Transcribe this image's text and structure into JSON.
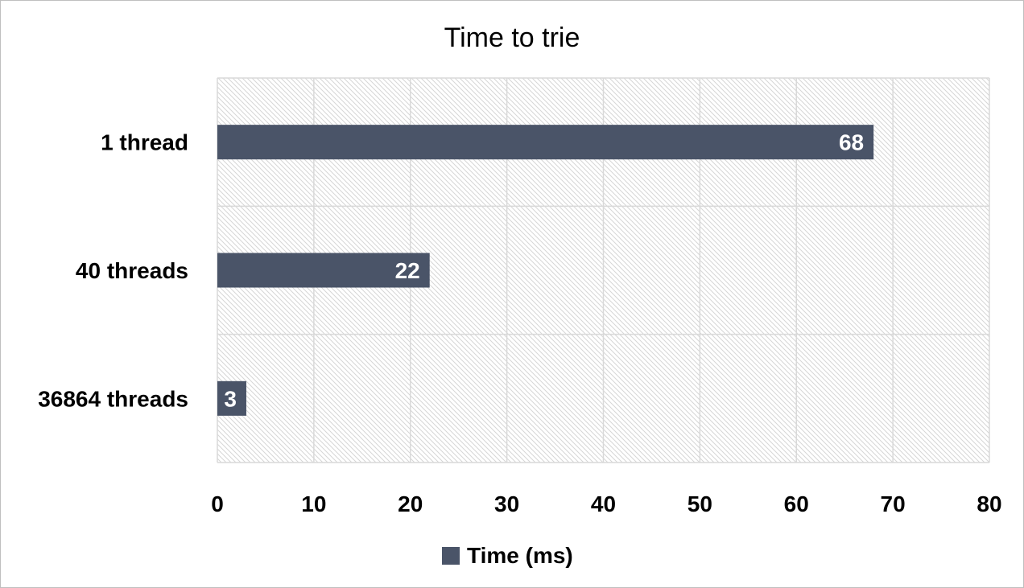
{
  "chart_data": {
    "type": "bar",
    "orientation": "horizontal",
    "title": "Time to trie",
    "categories": [
      "1 thread",
      "40 threads",
      "36864 threads"
    ],
    "series": [
      {
        "name": "Time (ms)",
        "values": [
          68,
          22,
          3
        ],
        "color": "#4a5468"
      }
    ],
    "data_labels": [
      "68",
      "22",
      "3"
    ],
    "xlim": [
      0,
      80
    ],
    "xticks": [
      0,
      10,
      20,
      30,
      40,
      50,
      60,
      70,
      80
    ],
    "xtick_labels": [
      "0",
      "10",
      "20",
      "30",
      "40",
      "50",
      "60",
      "70",
      "80"
    ],
    "grid": true,
    "plot_background": "hatched",
    "legend": {
      "position": "bottom",
      "entries": [
        "Time (ms)"
      ]
    }
  }
}
